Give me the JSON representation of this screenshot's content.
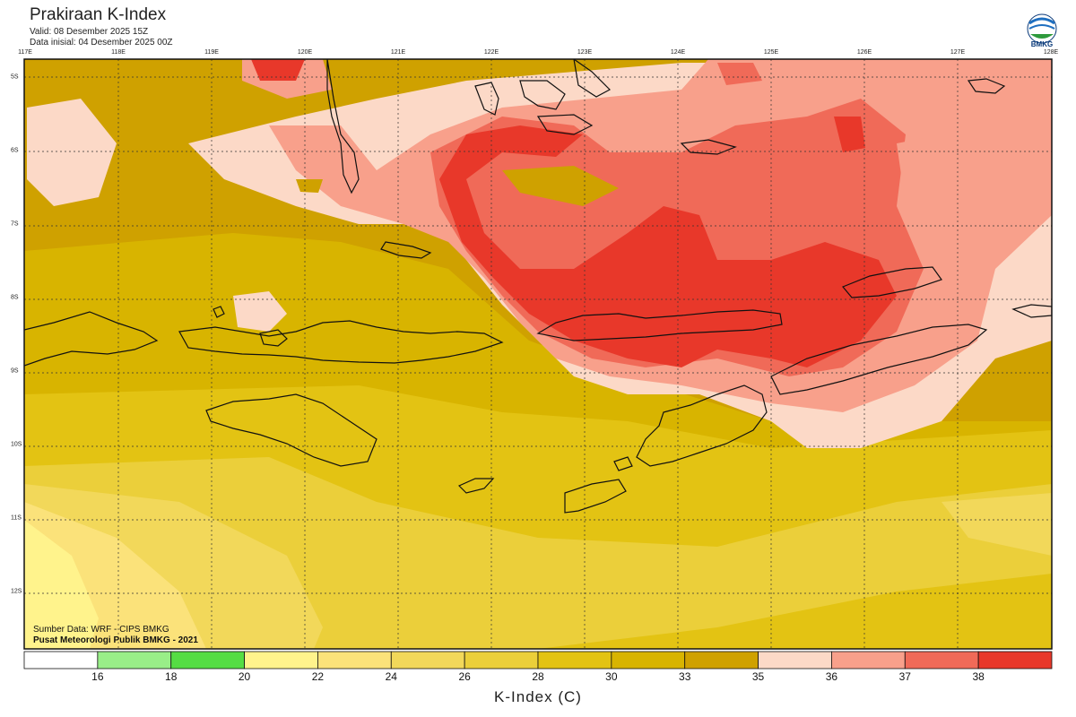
{
  "header": {
    "title": "Prakiraan K-Index",
    "valid": "Valid: 08 Desember 2025 15Z",
    "initial": "Data inisial: 04 Desember 2025 00Z"
  },
  "logo": {
    "text": "BMKG",
    "icon": "bmkg-logo-icon"
  },
  "lon_labels": [
    "117E",
    "118E",
    "119E",
    "120E",
    "121E",
    "122E",
    "123E",
    "124E",
    "125E",
    "126E",
    "127E",
    "128E"
  ],
  "lat_labels": [
    "5S",
    "6S",
    "7S",
    "8S",
    "9S",
    "10S",
    "11S",
    "12S"
  ],
  "credits": {
    "source": "Sumber Data: WRF - CIPS BMKG",
    "center": "Pusat Meteorologi Publik BMKG - 2021"
  },
  "colorbar": {
    "title": "K-Index (C)",
    "labels": [
      "16",
      "18",
      "20",
      "22",
      "24",
      "26",
      "28",
      "30",
      "33",
      "35",
      "36",
      "37",
      "38"
    ],
    "colors": [
      "#ffffff",
      "#99ee88",
      "#55dd44",
      "#fff38c",
      "#fbe27a",
      "#f2d85a",
      "#ebcf3a",
      "#e3c313",
      "#d8b400",
      "#cfa100",
      "#fcd9c7",
      "#f8a08b",
      "#f06a58",
      "#e8382a"
    ]
  }
}
